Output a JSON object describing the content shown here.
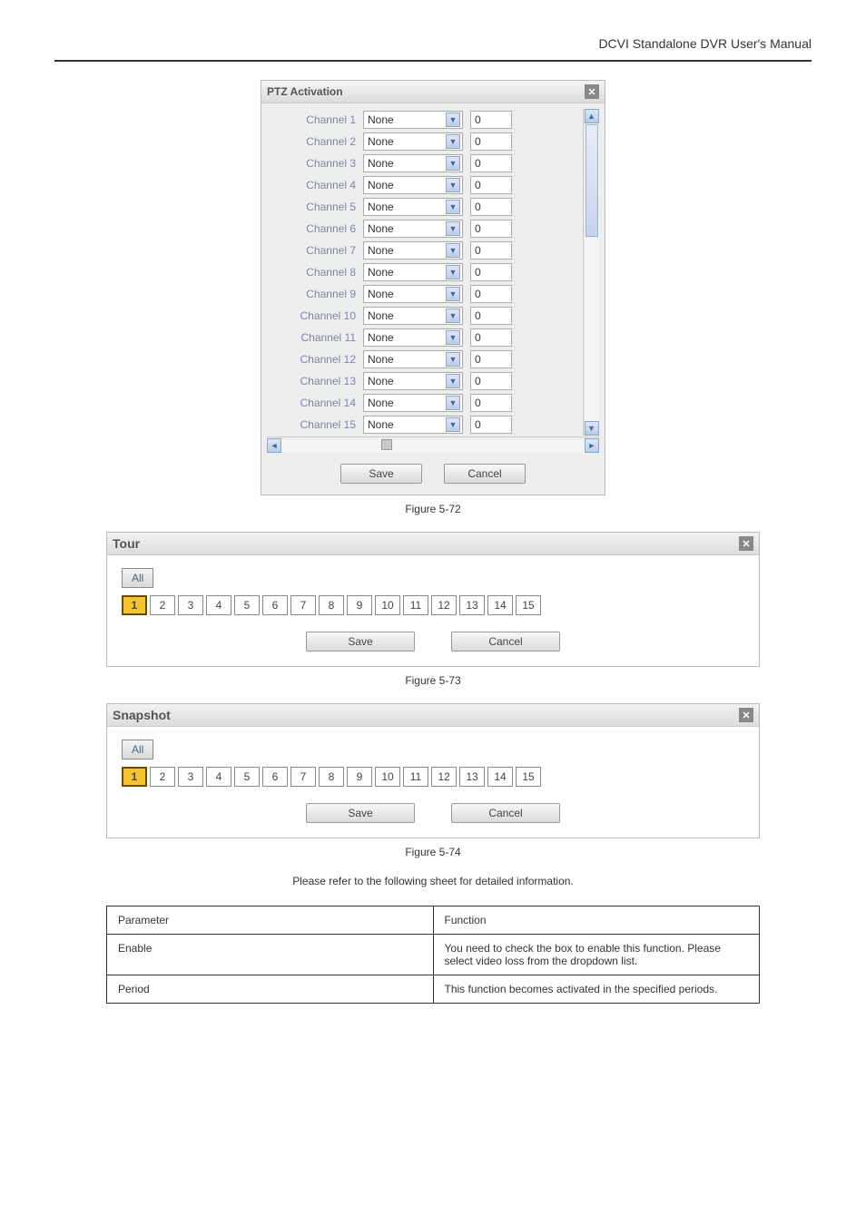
{
  "header": {
    "title": "DCVI Standalone DVR User's Manual"
  },
  "ptz": {
    "title": "PTZ Activation",
    "rows": [
      {
        "label": "Channel 1",
        "select": "None",
        "num": "0"
      },
      {
        "label": "Channel 2",
        "select": "None",
        "num": "0"
      },
      {
        "label": "Channel 3",
        "select": "None",
        "num": "0"
      },
      {
        "label": "Channel 4",
        "select": "None",
        "num": "0"
      },
      {
        "label": "Channel 5",
        "select": "None",
        "num": "0"
      },
      {
        "label": "Channel 6",
        "select": "None",
        "num": "0"
      },
      {
        "label": "Channel 7",
        "select": "None",
        "num": "0"
      },
      {
        "label": "Channel 8",
        "select": "None",
        "num": "0"
      },
      {
        "label": "Channel 9",
        "select": "None",
        "num": "0"
      },
      {
        "label": "Channel 10",
        "select": "None",
        "num": "0"
      },
      {
        "label": "Channel 11",
        "select": "None",
        "num": "0"
      },
      {
        "label": "Channel 12",
        "select": "None",
        "num": "0"
      },
      {
        "label": "Channel 13",
        "select": "None",
        "num": "0"
      },
      {
        "label": "Channel 14",
        "select": "None",
        "num": "0"
      },
      {
        "label": "Channel 15",
        "select": "None",
        "num": "0"
      }
    ],
    "save": "Save",
    "cancel": "Cancel",
    "figure": "Figure 5-72"
  },
  "tour": {
    "title": "Tour",
    "all": "All",
    "numbers": [
      "1",
      "2",
      "3",
      "4",
      "5",
      "6",
      "7",
      "8",
      "9",
      "10",
      "11",
      "12",
      "13",
      "14",
      "15"
    ],
    "active_index": 0,
    "save": "Save",
    "cancel": "Cancel",
    "figure": "Figure 5-73"
  },
  "snapshot": {
    "title": "Snapshot",
    "all": "All",
    "numbers": [
      "1",
      "2",
      "3",
      "4",
      "5",
      "6",
      "7",
      "8",
      "9",
      "10",
      "11",
      "12",
      "13",
      "14",
      "15"
    ],
    "active_index": 0,
    "save": "Save",
    "cancel": "Cancel",
    "figure": "Figure 5-74"
  },
  "refer_text": "Please refer to the following sheet for detailed information.",
  "table": {
    "head_param": "Parameter",
    "head_func": "Function",
    "r1_p": "Enable",
    "r1_f": "You need to check the box to enable this function. Please select video loss from the dropdown list.",
    "r2_p": "Period",
    "r2_f": "This function becomes activated in the specified periods."
  }
}
